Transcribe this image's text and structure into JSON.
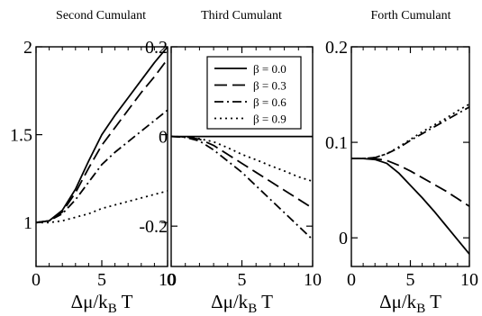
{
  "chart_data": [
    {
      "type": "line",
      "title": "Second Cumulant",
      "xlabel": "Δμ/k_B T",
      "ylabel": "",
      "xlim": [
        0,
        10
      ],
      "ylim": [
        0.75,
        2.0
      ],
      "xticks": [
        0,
        5,
        10
      ],
      "xtick_labels": [
        "0",
        "5",
        "10"
      ],
      "yticks": [
        1,
        1.5,
        2
      ],
      "ytick_labels": [
        "1",
        "1.5",
        "2"
      ],
      "x": [
        0,
        1,
        2,
        3,
        4,
        5,
        6,
        7,
        8,
        9,
        10
      ],
      "series": [
        {
          "name": "β = 0.0",
          "values": [
            1.0,
            1.01,
            1.07,
            1.19,
            1.35,
            1.5,
            1.61,
            1.71,
            1.81,
            1.91,
            2.0
          ]
        },
        {
          "name": "β = 0.3",
          "values": [
            1.0,
            1.01,
            1.06,
            1.17,
            1.31,
            1.44,
            1.54,
            1.64,
            1.74,
            1.83,
            1.93
          ]
        },
        {
          "name": "β = 0.6",
          "values": [
            1.0,
            1.01,
            1.05,
            1.13,
            1.23,
            1.33,
            1.4,
            1.46,
            1.52,
            1.58,
            1.64
          ]
        },
        {
          "name": "β = 0.9",
          "values": [
            1.0,
            1.0,
            1.01,
            1.03,
            1.05,
            1.08,
            1.1,
            1.12,
            1.14,
            1.16,
            1.18
          ]
        }
      ]
    },
    {
      "type": "line",
      "title": "Third Cumulant",
      "xlabel": "Δμ/k_B T",
      "ylabel": "",
      "xlim": [
        0,
        10
      ],
      "ylim": [
        -0.29,
        0.2
      ],
      "xticks": [
        0,
        5,
        10
      ],
      "xtick_labels": [
        "0",
        "5",
        "10"
      ],
      "yticks": [
        0.2,
        0,
        -0.2
      ],
      "ytick_labels": [
        "0.2",
        "0",
        "-0.2"
      ],
      "x": [
        0,
        1,
        2,
        3,
        4,
        5,
        6,
        7,
        8,
        9,
        10
      ],
      "series": [
        {
          "name": "β = 0.0",
          "values": [
            0,
            0,
            0,
            0,
            0,
            0,
            0,
            0,
            0,
            0,
            0
          ]
        },
        {
          "name": "β = 0.3",
          "values": [
            0,
            -0.001,
            -0.006,
            -0.02,
            -0.04,
            -0.06,
            -0.08,
            -0.1,
            -0.12,
            -0.14,
            -0.16
          ]
        },
        {
          "name": "β = 0.6",
          "values": [
            0,
            -0.002,
            -0.01,
            -0.03,
            -0.055,
            -0.08,
            -0.11,
            -0.14,
            -0.17,
            -0.2,
            -0.23
          ]
        },
        {
          "name": "β = 0.9",
          "values": [
            0,
            -0.001,
            -0.005,
            -0.012,
            -0.025,
            -0.04,
            -0.052,
            -0.065,
            -0.077,
            -0.09,
            -0.1
          ]
        }
      ],
      "legend": {
        "position": "top-right",
        "entries": [
          "β = 0.0",
          "β = 0.3",
          "β = 0.6",
          "β = 0.9"
        ]
      }
    },
    {
      "type": "line",
      "title": "Forth Cumulant",
      "xlabel": "Δμ/k_B T",
      "ylabel": "",
      "xlim": [
        0,
        10
      ],
      "ylim": [
        -0.03,
        0.2
      ],
      "xticks": [
        0,
        5,
        10
      ],
      "xtick_labels": [
        "0",
        "5",
        "10"
      ],
      "yticks": [
        0.2,
        0.1,
        0
      ],
      "ytick_labels": [
        "0.2",
        "0.1",
        "0"
      ],
      "x": [
        0,
        1,
        2,
        3,
        4,
        5,
        6,
        7,
        8,
        9,
        10
      ],
      "series": [
        {
          "name": "β = 0.0",
          "values": [
            0.083,
            0.083,
            0.082,
            0.078,
            0.068,
            0.055,
            0.042,
            0.028,
            0.013,
            -0.002,
            -0.017
          ]
        },
        {
          "name": "β = 0.3",
          "values": [
            0.083,
            0.083,
            0.083,
            0.081,
            0.076,
            0.07,
            0.063,
            0.056,
            0.049,
            0.041,
            0.033
          ]
        },
        {
          "name": "β = 0.6",
          "values": [
            0.083,
            0.083,
            0.084,
            0.088,
            0.094,
            0.102,
            0.109,
            0.116,
            0.123,
            0.13,
            0.137
          ]
        },
        {
          "name": "β = 0.9",
          "values": [
            0.083,
            0.083,
            0.084,
            0.088,
            0.095,
            0.103,
            0.111,
            0.118,
            0.125,
            0.133,
            0.14
          ]
        }
      ]
    }
  ],
  "series_styles": [
    "solid",
    "dashed",
    "dashdot",
    "dotted"
  ],
  "line_color": "#000000"
}
